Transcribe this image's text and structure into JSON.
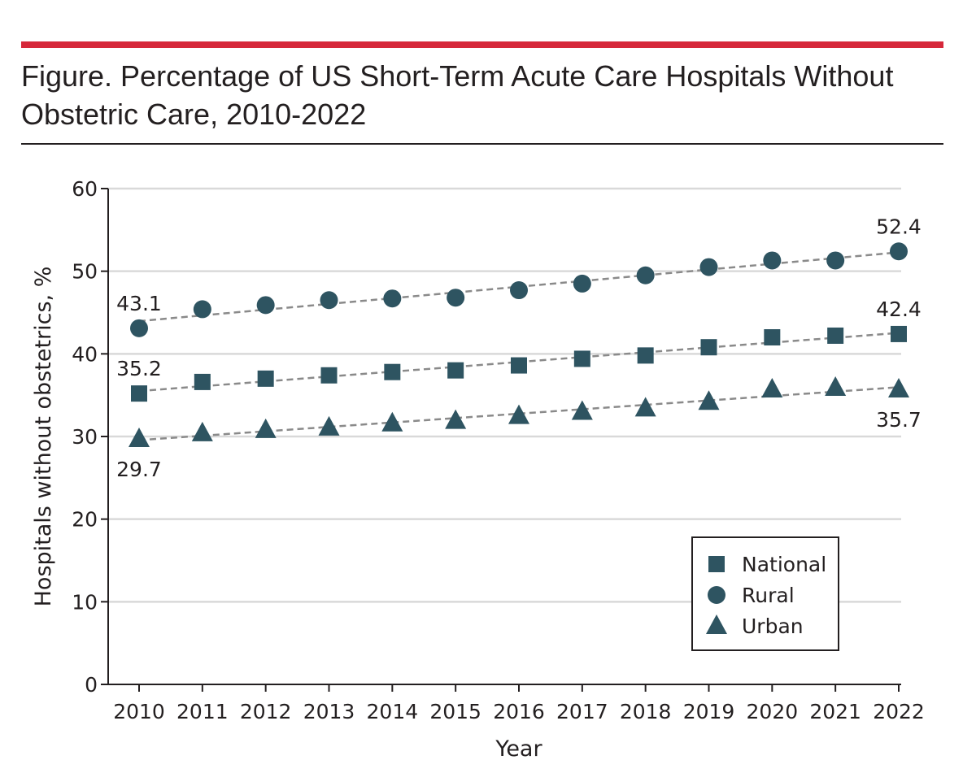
{
  "figure": {
    "title": "Figure. Percentage of US Short-Term Acute Care Hospitals Without Obstetric Care, 2010-2022"
  },
  "colors": {
    "accent_rule": "#d6283a",
    "marker": "#2e5461",
    "trend_line": "#8a8a8a",
    "grid": "#d9d9d9",
    "text": "#231f20"
  },
  "chart_data": {
    "type": "scatter",
    "title": "Figure. Percentage of US Short-Term Acute Care Hospitals Without Obstetric Care, 2010-2022",
    "xlabel": "Year",
    "ylabel": "Hospitals without obstetrics, %",
    "x": [
      2010,
      2011,
      2012,
      2013,
      2014,
      2015,
      2016,
      2017,
      2018,
      2019,
      2020,
      2021,
      2022
    ],
    "ylim": [
      0,
      60
    ],
    "yticks": [
      0,
      10,
      20,
      30,
      40,
      50,
      60
    ],
    "grid": true,
    "legend_position": "bottom-right",
    "trendlines": true,
    "series": [
      {
        "name": "National",
        "marker": "square",
        "values": [
          35.2,
          36.6,
          37.0,
          37.4,
          37.8,
          38.0,
          38.6,
          39.4,
          39.8,
          40.8,
          42.0,
          42.2,
          42.4
        ],
        "labels": [
          {
            "x": 2010,
            "text": "35.2",
            "pos": "above"
          },
          {
            "x": 2022,
            "text": "42.4",
            "pos": "above"
          }
        ]
      },
      {
        "name": "Rural",
        "marker": "circle",
        "values": [
          43.1,
          45.4,
          45.9,
          46.5,
          46.7,
          46.8,
          47.7,
          48.5,
          49.5,
          50.5,
          51.3,
          51.3,
          52.4
        ],
        "labels": [
          {
            "x": 2010,
            "text": "43.1",
            "pos": "above"
          },
          {
            "x": 2022,
            "text": "52.4",
            "pos": "above"
          }
        ]
      },
      {
        "name": "Urban",
        "marker": "triangle",
        "values": [
          29.7,
          30.4,
          30.8,
          31.1,
          31.6,
          31.9,
          32.5,
          33.0,
          33.4,
          34.2,
          35.7,
          35.9,
          35.7
        ],
        "labels": [
          {
            "x": 2010,
            "text": "29.7",
            "pos": "below"
          },
          {
            "x": 2022,
            "text": "35.7",
            "pos": "below"
          }
        ]
      }
    ]
  }
}
